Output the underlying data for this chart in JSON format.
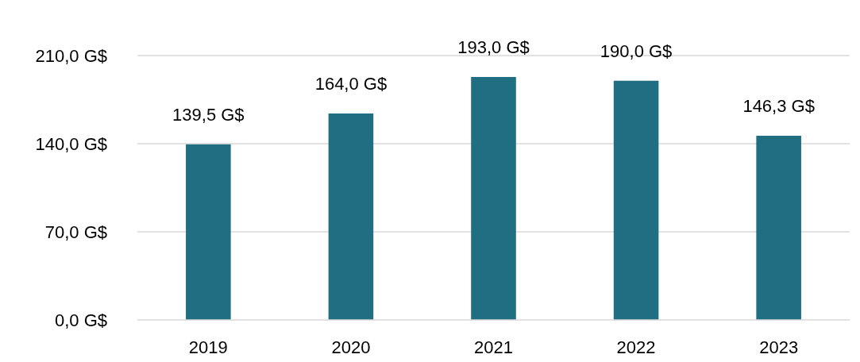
{
  "chart_data": {
    "type": "bar",
    "categories": [
      "2019",
      "2020",
      "2021",
      "2022",
      "2023"
    ],
    "values": [
      139.5,
      164.0,
      193.0,
      190.0,
      146.3
    ],
    "value_labels": [
      "139,5 G$",
      "164,0 G$",
      "193,0 G$",
      "190,0 G$",
      "146,3 G$"
    ],
    "color": "#1f6e82",
    "ylim": [
      0,
      210
    ],
    "yticks": [
      {
        "value": 0,
        "label": "0,0 G$"
      },
      {
        "value": 70,
        "label": "70,0 G$"
      },
      {
        "value": 140,
        "label": "140,0 G$"
      },
      {
        "value": 210,
        "label": "210,0 G$"
      }
    ],
    "grid": "y"
  }
}
